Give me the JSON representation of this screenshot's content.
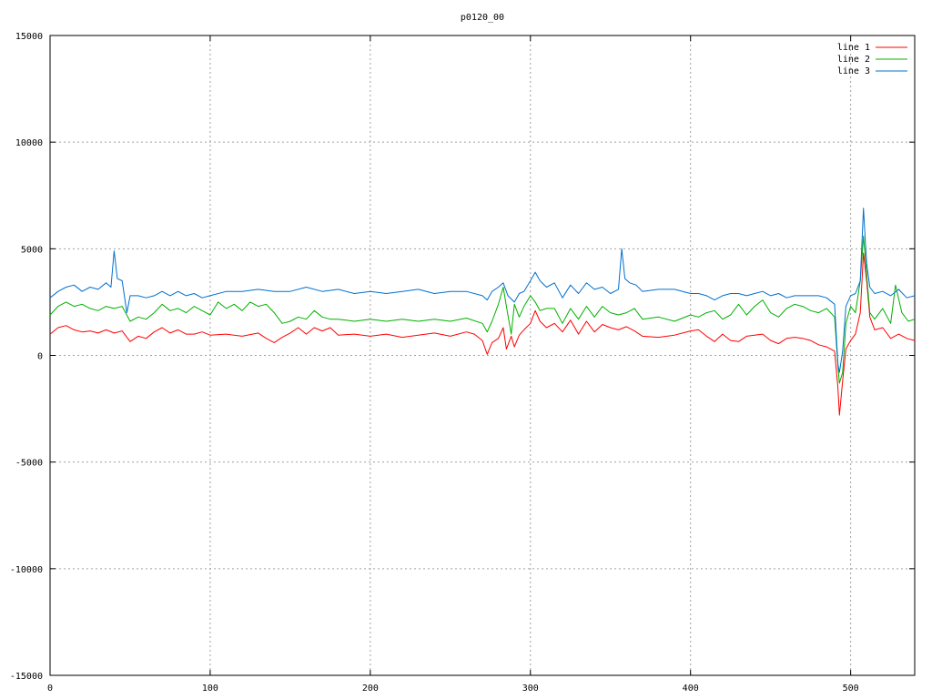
{
  "chart_data": {
    "type": "line",
    "title": "p0120_00",
    "xlim": [
      0,
      540
    ],
    "ylim": [
      -15000,
      15000
    ],
    "x_ticks": [
      0,
      100,
      200,
      300,
      400,
      500
    ],
    "y_ticks": [
      -15000,
      -10000,
      -5000,
      0,
      5000,
      10000,
      15000
    ],
    "grid": true,
    "legend_position": "top-right",
    "series": [
      {
        "name": "line 1",
        "color": "#ff0000",
        "points": [
          [
            0,
            1000
          ],
          [
            5,
            1300
          ],
          [
            10,
            1400
          ],
          [
            15,
            1200
          ],
          [
            20,
            1100
          ],
          [
            25,
            1150
          ],
          [
            30,
            1050
          ],
          [
            35,
            1200
          ],
          [
            40,
            1050
          ],
          [
            45,
            1150
          ],
          [
            50,
            650
          ],
          [
            55,
            900
          ],
          [
            60,
            800
          ],
          [
            65,
            1100
          ],
          [
            70,
            1300
          ],
          [
            75,
            1050
          ],
          [
            80,
            1200
          ],
          [
            85,
            1000
          ],
          [
            90,
            1000
          ],
          [
            95,
            1100
          ],
          [
            100,
            950
          ],
          [
            110,
            1000
          ],
          [
            120,
            900
          ],
          [
            130,
            1050
          ],
          [
            135,
            800
          ],
          [
            140,
            600
          ],
          [
            145,
            850
          ],
          [
            150,
            1050
          ],
          [
            155,
            1300
          ],
          [
            160,
            1000
          ],
          [
            165,
            1300
          ],
          [
            170,
            1150
          ],
          [
            175,
            1300
          ],
          [
            180,
            950
          ],
          [
            190,
            1000
          ],
          [
            200,
            900
          ],
          [
            210,
            1000
          ],
          [
            220,
            850
          ],
          [
            230,
            950
          ],
          [
            240,
            1050
          ],
          [
            250,
            900
          ],
          [
            260,
            1100
          ],
          [
            265,
            1000
          ],
          [
            270,
            700
          ],
          [
            273,
            50
          ],
          [
            276,
            600
          ],
          [
            280,
            800
          ],
          [
            283,
            1300
          ],
          [
            285,
            300
          ],
          [
            288,
            900
          ],
          [
            290,
            400
          ],
          [
            293,
            950
          ],
          [
            296,
            1200
          ],
          [
            300,
            1500
          ],
          [
            303,
            2100
          ],
          [
            306,
            1600
          ],
          [
            310,
            1300
          ],
          [
            315,
            1500
          ],
          [
            320,
            1100
          ],
          [
            325,
            1650
          ],
          [
            330,
            1000
          ],
          [
            335,
            1600
          ],
          [
            340,
            1100
          ],
          [
            345,
            1450
          ],
          [
            350,
            1300
          ],
          [
            355,
            1200
          ],
          [
            360,
            1350
          ],
          [
            365,
            1150
          ],
          [
            370,
            900
          ],
          [
            380,
            850
          ],
          [
            390,
            950
          ],
          [
            400,
            1150
          ],
          [
            405,
            1200
          ],
          [
            410,
            900
          ],
          [
            415,
            650
          ],
          [
            420,
            1000
          ],
          [
            425,
            700
          ],
          [
            430,
            650
          ],
          [
            435,
            900
          ],
          [
            440,
            950
          ],
          [
            445,
            1000
          ],
          [
            450,
            700
          ],
          [
            455,
            550
          ],
          [
            460,
            800
          ],
          [
            465,
            850
          ],
          [
            470,
            800
          ],
          [
            475,
            700
          ],
          [
            480,
            500
          ],
          [
            485,
            400
          ],
          [
            490,
            200
          ],
          [
            492,
            -1500
          ],
          [
            493,
            -2800
          ],
          [
            495,
            -1200
          ],
          [
            497,
            300
          ],
          [
            500,
            700
          ],
          [
            503,
            1000
          ],
          [
            506,
            2000
          ],
          [
            508,
            4800
          ],
          [
            510,
            3500
          ],
          [
            512,
            1800
          ],
          [
            515,
            1200
          ],
          [
            520,
            1300
          ],
          [
            525,
            800
          ],
          [
            530,
            1000
          ],
          [
            535,
            800
          ],
          [
            540,
            700
          ]
        ]
      },
      {
        "name": "line 2",
        "color": "#00b000",
        "points": [
          [
            0,
            1900
          ],
          [
            5,
            2300
          ],
          [
            10,
            2500
          ],
          [
            15,
            2300
          ],
          [
            20,
            2400
          ],
          [
            25,
            2200
          ],
          [
            30,
            2100
          ],
          [
            35,
            2300
          ],
          [
            40,
            2200
          ],
          [
            45,
            2300
          ],
          [
            50,
            1600
          ],
          [
            55,
            1800
          ],
          [
            60,
            1700
          ],
          [
            65,
            2000
          ],
          [
            70,
            2400
          ],
          [
            75,
            2100
          ],
          [
            80,
            2200
          ],
          [
            85,
            2000
          ],
          [
            90,
            2300
          ],
          [
            95,
            2100
          ],
          [
            100,
            1900
          ],
          [
            105,
            2500
          ],
          [
            110,
            2200
          ],
          [
            115,
            2400
          ],
          [
            120,
            2100
          ],
          [
            125,
            2500
          ],
          [
            130,
            2300
          ],
          [
            135,
            2400
          ],
          [
            140,
            2000
          ],
          [
            145,
            1500
          ],
          [
            150,
            1600
          ],
          [
            155,
            1800
          ],
          [
            160,
            1700
          ],
          [
            165,
            2100
          ],
          [
            170,
            1800
          ],
          [
            175,
            1700
          ],
          [
            180,
            1700
          ],
          [
            190,
            1600
          ],
          [
            200,
            1700
          ],
          [
            210,
            1600
          ],
          [
            220,
            1700
          ],
          [
            230,
            1600
          ],
          [
            240,
            1700
          ],
          [
            250,
            1600
          ],
          [
            260,
            1750
          ],
          [
            270,
            1500
          ],
          [
            273,
            1100
          ],
          [
            276,
            1600
          ],
          [
            280,
            2400
          ],
          [
            283,
            3200
          ],
          [
            285,
            2300
          ],
          [
            288,
            1000
          ],
          [
            290,
            2400
          ],
          [
            293,
            1800
          ],
          [
            296,
            2300
          ],
          [
            300,
            2800
          ],
          [
            303,
            2500
          ],
          [
            306,
            2100
          ],
          [
            310,
            2200
          ],
          [
            315,
            2200
          ],
          [
            320,
            1500
          ],
          [
            325,
            2200
          ],
          [
            330,
            1700
          ],
          [
            335,
            2300
          ],
          [
            340,
            1800
          ],
          [
            345,
            2300
          ],
          [
            350,
            2000
          ],
          [
            355,
            1900
          ],
          [
            360,
            2000
          ],
          [
            365,
            2200
          ],
          [
            370,
            1700
          ],
          [
            380,
            1800
          ],
          [
            390,
            1600
          ],
          [
            400,
            1900
          ],
          [
            405,
            1800
          ],
          [
            410,
            2000
          ],
          [
            415,
            2100
          ],
          [
            420,
            1700
          ],
          [
            425,
            1900
          ],
          [
            430,
            2400
          ],
          [
            435,
            1900
          ],
          [
            440,
            2300
          ],
          [
            445,
            2600
          ],
          [
            450,
            2000
          ],
          [
            455,
            1800
          ],
          [
            460,
            2200
          ],
          [
            465,
            2400
          ],
          [
            470,
            2300
          ],
          [
            475,
            2100
          ],
          [
            480,
            2000
          ],
          [
            485,
            2200
          ],
          [
            490,
            1800
          ],
          [
            492,
            -500
          ],
          [
            493,
            -1300
          ],
          [
            495,
            -800
          ],
          [
            497,
            1500
          ],
          [
            500,
            2300
          ],
          [
            503,
            2000
          ],
          [
            506,
            3500
          ],
          [
            508,
            5600
          ],
          [
            510,
            3800
          ],
          [
            512,
            2000
          ],
          [
            515,
            1700
          ],
          [
            520,
            2200
          ],
          [
            525,
            1500
          ],
          [
            528,
            3300
          ],
          [
            532,
            2000
          ],
          [
            536,
            1600
          ],
          [
            540,
            1700
          ]
        ]
      },
      {
        "name": "line 3",
        "color": "#0070d0",
        "points": [
          [
            0,
            2700
          ],
          [
            5,
            3000
          ],
          [
            10,
            3200
          ],
          [
            15,
            3300
          ],
          [
            20,
            3000
          ],
          [
            25,
            3200
          ],
          [
            30,
            3100
          ],
          [
            35,
            3400
          ],
          [
            38,
            3200
          ],
          [
            40,
            4900
          ],
          [
            42,
            3600
          ],
          [
            45,
            3500
          ],
          [
            48,
            2000
          ],
          [
            50,
            2800
          ],
          [
            55,
            2800
          ],
          [
            60,
            2700
          ],
          [
            65,
            2800
          ],
          [
            70,
            3000
          ],
          [
            75,
            2800
          ],
          [
            80,
            3000
          ],
          [
            85,
            2800
          ],
          [
            90,
            2900
          ],
          [
            95,
            2700
          ],
          [
            100,
            2800
          ],
          [
            110,
            3000
          ],
          [
            120,
            3000
          ],
          [
            130,
            3100
          ],
          [
            140,
            3000
          ],
          [
            150,
            3000
          ],
          [
            160,
            3200
          ],
          [
            170,
            3000
          ],
          [
            180,
            3100
          ],
          [
            190,
            2900
          ],
          [
            200,
            3000
          ],
          [
            210,
            2900
          ],
          [
            220,
            3000
          ],
          [
            230,
            3100
          ],
          [
            240,
            2900
          ],
          [
            250,
            3000
          ],
          [
            260,
            3000
          ],
          [
            270,
            2800
          ],
          [
            273,
            2600
          ],
          [
            276,
            3000
          ],
          [
            280,
            3200
          ],
          [
            283,
            3400
          ],
          [
            286,
            2800
          ],
          [
            290,
            2500
          ],
          [
            293,
            2900
          ],
          [
            296,
            3000
          ],
          [
            300,
            3500
          ],
          [
            303,
            3900
          ],
          [
            306,
            3500
          ],
          [
            310,
            3200
          ],
          [
            315,
            3400
          ],
          [
            320,
            2700
          ],
          [
            325,
            3300
          ],
          [
            330,
            2900
          ],
          [
            335,
            3400
          ],
          [
            340,
            3100
          ],
          [
            345,
            3200
          ],
          [
            350,
            2900
          ],
          [
            355,
            3100
          ],
          [
            357,
            5000
          ],
          [
            359,
            3600
          ],
          [
            362,
            3400
          ],
          [
            366,
            3300
          ],
          [
            370,
            3000
          ],
          [
            380,
            3100
          ],
          [
            390,
            3100
          ],
          [
            400,
            2900
          ],
          [
            405,
            2900
          ],
          [
            410,
            2800
          ],
          [
            415,
            2600
          ],
          [
            420,
            2800
          ],
          [
            425,
            2900
          ],
          [
            430,
            2900
          ],
          [
            435,
            2800
          ],
          [
            440,
            2900
          ],
          [
            445,
            3000
          ],
          [
            450,
            2800
          ],
          [
            455,
            2900
          ],
          [
            460,
            2700
          ],
          [
            465,
            2800
          ],
          [
            470,
            2800
          ],
          [
            475,
            2800
          ],
          [
            480,
            2800
          ],
          [
            485,
            2700
          ],
          [
            490,
            2400
          ],
          [
            492,
            -400
          ],
          [
            493,
            -800
          ],
          [
            495,
            200
          ],
          [
            497,
            2300
          ],
          [
            500,
            2800
          ],
          [
            503,
            2900
          ],
          [
            506,
            3500
          ],
          [
            508,
            6900
          ],
          [
            510,
            4300
          ],
          [
            512,
            3200
          ],
          [
            515,
            2900
          ],
          [
            520,
            3000
          ],
          [
            525,
            2800
          ],
          [
            530,
            3100
          ],
          [
            535,
            2700
          ],
          [
            540,
            2800
          ]
        ]
      }
    ]
  }
}
